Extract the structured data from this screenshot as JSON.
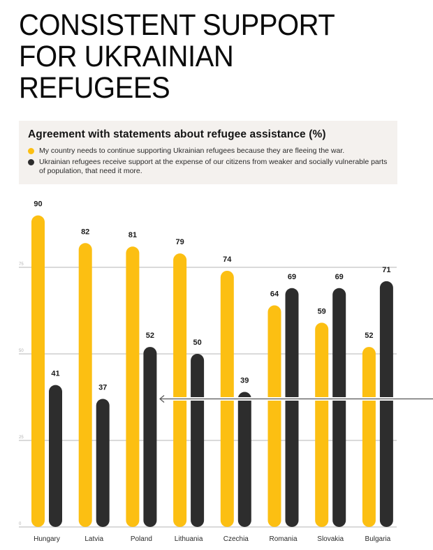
{
  "page": {
    "title": "CONSISTENT SUPPORT\nFOR UKRAINIAN\nREFUGEES"
  },
  "legend": {
    "title": "Agreement with statements about refugee assistance  (%)",
    "items": [
      {
        "label": "My country needs to continue supporting Ukrainian refugees because they are fleeing the war.",
        "color": "#fcbf12"
      },
      {
        "label": "Ukrainian refugees receive support at the expense of our citizens from weaker and socially vulnerable parts of population, that need it more.",
        "color": "#2d2d2d"
      }
    ]
  },
  "colors": {
    "accent": "#fcbf12",
    "dark": "#2d2d2d",
    "grid": "#c4c4c4",
    "legend_bg": "#f4f1ee",
    "arrow": "#555555"
  },
  "chart_data": {
    "type": "bar",
    "title": "Agreement with statements about refugee assistance  (%)",
    "xlabel": "",
    "ylabel": "",
    "ylim": [
      0,
      100
    ],
    "yticks": [
      0,
      25,
      50,
      75
    ],
    "grid": true,
    "legend_position": "top",
    "categories": [
      "Hungary",
      "Latvia",
      "Poland",
      "Lithuania",
      "Czechia",
      "Romania",
      "Slovakia",
      "Bulgaria"
    ],
    "series": [
      {
        "name": "My country needs to continue supporting Ukrainian refugees because they are fleeing the war.",
        "color": "#fcbf12",
        "values": [
          90,
          82,
          81,
          79,
          74,
          64,
          59,
          52
        ]
      },
      {
        "name": "Ukrainian refugees receive support at the expense of our citizens from weaker and socially vulnerable parts of population, that need it more.",
        "color": "#2d2d2d",
        "values": [
          41,
          37,
          52,
          50,
          39,
          69,
          69,
          71
        ]
      }
    ],
    "annotations": [
      {
        "type": "arrow",
        "direction": "left",
        "value": 37
      }
    ]
  }
}
